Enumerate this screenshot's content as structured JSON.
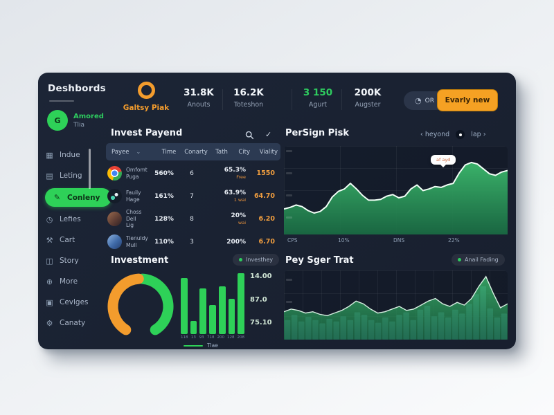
{
  "sidebar": {
    "title": "Deshbords",
    "user": {
      "initial": "G",
      "name": "Amored",
      "subtitle": "Tlia"
    },
    "items": [
      {
        "label": "Indue",
        "icon": "grid-icon",
        "active": false
      },
      {
        "label": "Leting",
        "icon": "calendar-icon",
        "active": false
      },
      {
        "label": "Conleny",
        "icon": "document-icon",
        "active": true
      },
      {
        "label": "Lefies",
        "icon": "clock-icon",
        "active": false
      },
      {
        "label": "Cart",
        "icon": "tools-icon",
        "active": false
      },
      {
        "label": "Story",
        "icon": "briefcase-icon",
        "active": false
      },
      {
        "label": "More",
        "icon": "refresh-icon",
        "active": false
      },
      {
        "label": "Cevlges",
        "icon": "card-icon",
        "active": false
      },
      {
        "label": "Canaty",
        "icon": "gear-icon",
        "active": false
      }
    ]
  },
  "header": {
    "logo": {
      "name": "Galtsy Piak",
      "color": "#f39c2d"
    },
    "stats": [
      {
        "value": "31.8K",
        "label": "Anouts",
        "color": "#f2f6fa"
      },
      {
        "value": "16.2K",
        "label": "Toteshon",
        "color": "#f2f6fa"
      },
      {
        "value": "3 150",
        "label": "Agurt",
        "color": "#2ecc5f"
      },
      {
        "value": "200K",
        "label": "Augster",
        "color": "#f2f6fa"
      }
    ],
    "or_button": {
      "label": "OR",
      "icon": "clock-icon"
    },
    "cta_button": {
      "label": "Evarly new",
      "color": "#f5a123"
    }
  },
  "table": {
    "title": "Invest Payend",
    "columns": [
      "Payee",
      "Time",
      "Conarty",
      "Tath",
      "City",
      "Viality"
    ],
    "rows": [
      {
        "avatar": "chrome",
        "name": "Omfomt",
        "name2": "Puga",
        "time": "560%",
        "conarty": "6",
        "city": "65.3%",
        "city_sub": "Free",
        "viality": "1550"
      },
      {
        "avatar": "camera",
        "name": "Fauily",
        "name2": "Hage",
        "time": "161%",
        "conarty": "7",
        "city": "63.9%",
        "city_sub": "1 wai",
        "viality": "64.70"
      },
      {
        "avatar": "person1",
        "name": "Choss Dell",
        "name2": "Lig",
        "time": "128%",
        "conarty": "8",
        "city": "20%",
        "city_sub": "wai",
        "viality": "6.20"
      },
      {
        "avatar": "person2",
        "name": "Tienuldy",
        "name2": "Mull",
        "time": "110%",
        "conarty": "3",
        "city": "200%",
        "city_sub": "",
        "viality": "6.70"
      }
    ]
  },
  "line_panel": {
    "title": "PerSign Pisk",
    "prev": "heyond",
    "next": "lap",
    "tooltip": "af ayd"
  },
  "investment": {
    "title": "Investment",
    "legend": "Investhey",
    "bars_legend": "Tlae"
  },
  "trat_panel": {
    "title": "Pey Sger Trat",
    "legend": "Anail Fading"
  },
  "chart_data": [
    {
      "id": "persign_pisk",
      "type": "area",
      "title": "PerSign Pisk",
      "x_ticks": [
        "CPS",
        "10%",
        "DNS",
        "22%"
      ],
      "ylim": [
        0,
        100
      ],
      "grid": true,
      "values": [
        30,
        32,
        35,
        33,
        28,
        25,
        27,
        33,
        45,
        52,
        55,
        62,
        55,
        47,
        41,
        41,
        42,
        46,
        48,
        44,
        46,
        55,
        60,
        53,
        55,
        58,
        57,
        60,
        62,
        75,
        85,
        88,
        86,
        80,
        74,
        72,
        76,
        78
      ],
      "line_color": "#f2fff7",
      "fill_top": "#3cba6d",
      "fill_bottom": "#1a6e44",
      "annotation": "af ayd"
    },
    {
      "id": "investment_donut",
      "type": "donut",
      "title": "Investment",
      "segments": [
        {
          "name": "primary",
          "color": "#2ed158",
          "start_deg": 4,
          "end_deg": 148
        },
        {
          "name": "secondary",
          "color": "#f39c2d",
          "start_deg": 212,
          "end_deg": 356
        }
      ]
    },
    {
      "id": "investment_bars",
      "type": "bar",
      "title": "Investment",
      "categories": [
        "118",
        "13",
        "93",
        "718",
        "200",
        "128",
        "208"
      ],
      "values": [
        92,
        22,
        75,
        48,
        78,
        58,
        100
      ],
      "ylim": [
        0,
        100
      ],
      "axis_labels": [
        "14.00",
        "87.0",
        "75.10"
      ],
      "legend": "Tlae",
      "bar_color": "#2ed158"
    },
    {
      "id": "peysger_trat",
      "type": "bar-area",
      "title": "Pey Sger Trat",
      "ylim": [
        0,
        100
      ],
      "grid": true,
      "bar_values": [
        30,
        38,
        28,
        35,
        30,
        25,
        32,
        28,
        36,
        30,
        42,
        38,
        30,
        26,
        34,
        28,
        38,
        42,
        30,
        46,
        52,
        36,
        42,
        34,
        46,
        40,
        55,
        70,
        82,
        48,
        34,
        40
      ],
      "area_values": [
        42,
        46,
        44,
        40,
        42,
        38,
        36,
        40,
        44,
        50,
        58,
        54,
        46,
        40,
        42,
        46,
        50,
        44,
        46,
        52,
        58,
        62,
        54,
        50,
        56,
        52,
        62,
        80,
        95,
        70,
        48,
        54
      ],
      "bar_color": "#3e6f88",
      "fill_top": "#3cba6d",
      "fill_bottom": "#1a6e44"
    }
  ]
}
